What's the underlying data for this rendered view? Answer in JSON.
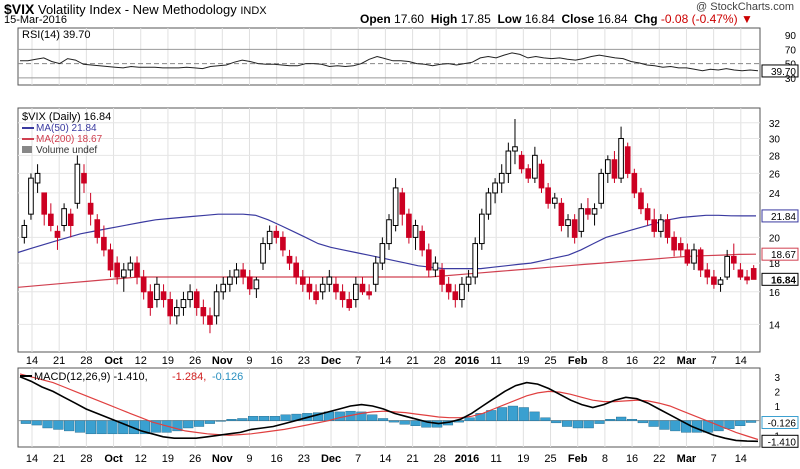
{
  "header": {
    "symbol": "$VIX",
    "name": "Volatility Index - New Methodology",
    "exchange": "INDX",
    "date": "15-Mar-2016",
    "copyright": "@ StockCharts.com",
    "open_label": "Open",
    "open": "17.60",
    "high_label": "High",
    "high": "17.85",
    "low_label": "Low",
    "low": "16.84",
    "close_label": "Close",
    "close": "16.84",
    "chg_label": "Chg",
    "chg": "-0.08 (-0.47%)"
  },
  "colors": {
    "up": "#000000",
    "down": "#cc0022",
    "ma50": "#3a3aa0",
    "ma200": "#d04050",
    "macd": "#000000",
    "signal": "#e04040",
    "hist": "#3aa0d0",
    "rsi": "#222222"
  },
  "chart_data": [
    {
      "type": "line",
      "title": "RSI(14) 39.70",
      "legend_label": "RSI(14)",
      "legend_value": "39.70",
      "y_ticks": [
        90,
        70,
        50,
        39.7,
        30
      ],
      "y_labels": [
        "90",
        "70",
        "50",
        "39.70",
        "30"
      ],
      "ylim": [
        20,
        100
      ],
      "series": [
        {
          "name": "RSI(14)",
          "values": [
            54,
            54,
            56,
            58,
            53,
            50,
            57,
            55,
            49,
            48,
            47,
            46,
            45,
            44,
            46,
            45,
            45,
            45,
            44,
            44,
            44,
            45,
            44,
            43,
            46,
            47,
            48,
            52,
            55,
            53,
            50,
            49,
            49,
            48,
            47,
            47,
            50,
            50,
            49,
            46,
            47,
            46,
            47,
            50,
            56,
            60,
            57,
            54,
            54,
            53,
            50,
            49,
            47,
            49,
            50,
            48,
            50,
            52,
            58,
            60,
            58,
            62,
            65,
            63,
            58,
            60,
            58,
            57,
            58,
            56,
            55,
            57,
            60,
            62,
            60,
            58,
            57,
            53,
            51,
            48,
            47,
            45,
            46,
            44,
            44,
            42,
            40,
            42,
            41,
            43,
            41,
            40,
            41,
            40
          ]
        }
      ]
    },
    {
      "type": "candlestick",
      "title": "$VIX (Daily) 16.84",
      "legend": [
        "$VIX (Daily) 16.84",
        "MA(50) 21.84",
        "MA(200) 18.67",
        "Volume undef"
      ],
      "y_ticks": [
        32,
        30,
        28,
        26,
        24,
        20,
        18,
        16,
        14
      ],
      "y_labels": [
        "32",
        "30",
        "28",
        "26",
        "24",
        "20",
        "18",
        "16",
        "14"
      ],
      "last_value_labels": [
        "21.84",
        "18.67",
        "16.84"
      ],
      "ylim": [
        12.5,
        34
      ],
      "log_scale": true,
      "candles": [
        [
          20.0,
          21.5,
          19.5,
          21.0
        ],
        [
          22.0,
          26.0,
          21.5,
          25.5
        ],
        [
          25.0,
          27.0,
          24.0,
          26.0
        ],
        [
          24.0,
          24.0,
          21.0,
          22.0
        ],
        [
          22.0,
          23.0,
          20.5,
          21.0
        ],
        [
          20.5,
          21.0,
          19.0,
          20.0
        ],
        [
          21.0,
          23.0,
          20.5,
          22.5
        ],
        [
          22.0,
          22.5,
          20.0,
          21.0
        ],
        [
          23.0,
          28.0,
          22.5,
          27.0
        ],
        [
          26.0,
          27.0,
          24.0,
          25.0
        ],
        [
          23.0,
          24.0,
          21.0,
          22.0
        ],
        [
          21.5,
          22.0,
          19.5,
          20.0
        ],
        [
          20.0,
          21.0,
          18.5,
          19.0
        ],
        [
          19.0,
          19.5,
          17.0,
          17.5
        ],
        [
          18.0,
          18.5,
          16.5,
          17.0
        ],
        [
          17.0,
          18.0,
          16.0,
          17.5
        ],
        [
          17.5,
          18.5,
          17.0,
          18.0
        ],
        [
          18.0,
          18.5,
          16.5,
          17.0
        ],
        [
          17.0,
          17.5,
          15.5,
          16.0
        ],
        [
          16.0,
          16.5,
          14.5,
          15.0
        ],
        [
          15.5,
          17.0,
          15.0,
          16.5
        ],
        [
          16.0,
          16.5,
          15.0,
          15.5
        ],
        [
          15.5,
          16.0,
          14.0,
          14.5
        ],
        [
          14.5,
          15.5,
          14.0,
          15.0
        ],
        [
          15.0,
          16.0,
          14.5,
          15.5
        ],
        [
          15.5,
          16.5,
          15.0,
          16.0
        ],
        [
          16.0,
          16.2,
          14.5,
          15.0
        ],
        [
          15.0,
          15.5,
          14.0,
          14.5
        ],
        [
          14.5,
          15.0,
          13.5,
          14.0
        ],
        [
          14.5,
          16.5,
          14.0,
          16.0
        ],
        [
          16.0,
          17.0,
          15.5,
          16.5
        ],
        [
          16.5,
          17.5,
          16.0,
          17.0
        ],
        [
          17.0,
          18.0,
          16.5,
          17.5
        ],
        [
          17.5,
          18.0,
          16.5,
          17.0
        ],
        [
          17.0,
          17.5,
          15.8,
          16.2
        ],
        [
          16.2,
          17.0,
          15.6,
          16.8
        ],
        [
          18.0,
          20.0,
          17.5,
          19.5
        ],
        [
          19.5,
          21.0,
          19.0,
          20.5
        ],
        [
          20.5,
          21.0,
          19.5,
          20.0
        ],
        [
          20.0,
          20.5,
          18.5,
          19.0
        ],
        [
          18.5,
          19.0,
          17.5,
          18.0
        ],
        [
          18.0,
          18.5,
          16.5,
          17.0
        ],
        [
          17.0,
          17.5,
          16.0,
          16.5
        ],
        [
          16.5,
          17.0,
          15.5,
          16.0
        ],
        [
          16.0,
          16.5,
          15.2,
          15.5
        ],
        [
          16.0,
          17.0,
          15.5,
          16.5
        ],
        [
          16.5,
          17.5,
          16.0,
          17.0
        ],
        [
          16.5,
          17.0,
          15.5,
          16.0
        ],
        [
          16.0,
          16.5,
          15.0,
          15.5
        ],
        [
          15.5,
          16.0,
          14.8,
          15.0
        ],
        [
          15.5,
          17.0,
          15.0,
          16.5
        ],
        [
          16.5,
          17.0,
          15.8,
          16.0
        ],
        [
          16.0,
          16.5,
          15.5,
          15.8
        ],
        [
          16.5,
          18.5,
          16.0,
          18.0
        ],
        [
          18.0,
          20.0,
          17.5,
          19.5
        ],
        [
          19.5,
          22.0,
          19.0,
          21.5
        ],
        [
          21.0,
          25.5,
          20.5,
          24.5
        ],
        [
          24.0,
          24.5,
          21.0,
          22.0
        ],
        [
          22.0,
          22.5,
          19.5,
          20.0
        ],
        [
          20.0,
          21.5,
          19.0,
          21.0
        ],
        [
          20.5,
          21.0,
          18.5,
          19.0
        ],
        [
          19.0,
          19.5,
          17.0,
          17.5
        ],
        [
          17.5,
          18.5,
          17.0,
          18.0
        ],
        [
          17.5,
          18.0,
          16.0,
          16.5
        ],
        [
          16.5,
          17.0,
          15.5,
          16.0
        ],
        [
          16.0,
          16.5,
          15.0,
          15.5
        ],
        [
          15.5,
          17.0,
          15.0,
          16.5
        ],
        [
          16.5,
          17.5,
          16.0,
          17.0
        ],
        [
          17.0,
          20.0,
          16.5,
          19.5
        ],
        [
          19.5,
          22.5,
          19.0,
          22.0
        ],
        [
          22.0,
          24.5,
          21.5,
          24.0
        ],
        [
          24.0,
          25.5,
          23.0,
          25.0
        ],
        [
          25.0,
          27.0,
          24.0,
          26.0
        ],
        [
          26.0,
          29.5,
          25.0,
          28.5
        ],
        [
          28.5,
          32.5,
          27.0,
          29.0
        ],
        [
          28.0,
          28.5,
          26.0,
          26.5
        ],
        [
          26.5,
          27.0,
          25.0,
          25.5
        ],
        [
          25.5,
          29.0,
          25.0,
          28.0
        ],
        [
          27.0,
          27.5,
          24.0,
          24.5
        ],
        [
          24.5,
          25.0,
          22.5,
          23.0
        ],
        [
          23.0,
          24.0,
          22.5,
          23.5
        ],
        [
          23.0,
          23.5,
          20.5,
          21.0
        ],
        [
          21.0,
          22.0,
          20.0,
          21.5
        ],
        [
          21.5,
          22.0,
          19.5,
          20.0
        ],
        [
          20.5,
          23.0,
          20.0,
          22.5
        ],
        [
          22.5,
          23.5,
          21.5,
          22.0
        ],
        [
          22.0,
          23.0,
          21.0,
          22.5
        ],
        [
          23.0,
          26.5,
          22.5,
          26.0
        ],
        [
          26.0,
          28.0,
          25.0,
          27.5
        ],
        [
          27.5,
          28.5,
          25.0,
          25.5
        ],
        [
          25.5,
          31.5,
          25.0,
          30.0
        ],
        [
          29.0,
          29.5,
          25.5,
          26.0
        ],
        [
          26.0,
          26.5,
          23.5,
          24.0
        ],
        [
          24.0,
          24.5,
          22.0,
          22.5
        ],
        [
          22.5,
          23.0,
          21.0,
          21.5
        ],
        [
          21.5,
          22.5,
          20.0,
          20.5
        ],
        [
          20.5,
          22.0,
          20.0,
          21.5
        ],
        [
          21.5,
          22.0,
          19.5,
          20.0
        ],
        [
          20.0,
          20.5,
          18.5,
          19.0
        ],
        [
          19.5,
          20.0,
          18.5,
          19.0
        ],
        [
          19.0,
          19.5,
          17.8,
          18.0
        ],
        [
          18.0,
          19.5,
          17.5,
          19.0
        ],
        [
          19.0,
          19.2,
          17.0,
          17.5
        ],
        [
          17.5,
          18.0,
          16.5,
          17.0
        ],
        [
          17.0,
          17.5,
          16.2,
          16.5
        ],
        [
          16.5,
          17.0,
          16.0,
          16.8
        ],
        [
          17.0,
          19.0,
          16.8,
          18.5
        ],
        [
          18.5,
          19.5,
          17.5,
          18.0
        ],
        [
          17.5,
          18.0,
          16.8,
          17.0
        ],
        [
          17.0,
          17.5,
          16.5,
          16.8
        ],
        [
          17.6,
          17.85,
          16.84,
          16.84
        ]
      ],
      "series": [
        {
          "name": "MA(50)",
          "values": [
            18.8,
            19.1,
            19.4,
            19.7,
            20.0,
            20.3,
            20.5,
            20.7,
            20.9,
            21.1,
            21.3,
            21.5,
            21.6,
            21.7,
            21.8,
            21.9,
            22.0,
            22.0,
            22.0,
            21.9,
            21.5,
            21.0,
            20.5,
            20.0,
            19.5,
            19.2,
            19.0,
            18.8,
            18.6,
            18.4,
            18.2,
            18.0,
            17.8,
            17.7,
            17.6,
            17.6,
            17.6,
            17.6,
            17.7,
            17.8,
            17.9,
            18.0,
            18.2,
            18.4,
            18.6,
            19.0,
            19.5,
            20.0,
            20.3,
            20.6,
            20.9,
            21.2,
            21.5,
            21.7,
            21.8,
            21.9,
            21.9,
            21.85,
            21.84,
            21.84
          ]
        },
        {
          "name": "MA(200)",
          "values": [
            16.3,
            16.4,
            16.5,
            16.6,
            16.7,
            16.8,
            16.9,
            17.0,
            17.0,
            17.0,
            17.0,
            17.0,
            17.0,
            17.0,
            17.0,
            17.0,
            17.0,
            17.0,
            17.0,
            17.0,
            17.0,
            17.0,
            17.0,
            17.0,
            17.0,
            17.1,
            17.2,
            17.3,
            17.4,
            17.5,
            17.6,
            17.7,
            17.8,
            17.9,
            18.0,
            18.1,
            18.2,
            18.3,
            18.4,
            18.5,
            18.55,
            18.6,
            18.65,
            18.67
          ]
        }
      ]
    },
    {
      "type": "line",
      "title": "MACD(12,26,9) -1.410, -1.284, -0.126",
      "legend": [
        "MACD(12,26,9)",
        "-1.410",
        "-1.284",
        "-0.126"
      ],
      "y_ticks": [
        3,
        2,
        1,
        0,
        -1
      ],
      "y_labels": [
        "3",
        "2",
        "1",
        "0",
        "-1"
      ],
      "last_value_labels": [
        "-0.126",
        "-1.410"
      ],
      "ylim": [
        -1.8,
        3.6
      ],
      "series": [
        {
          "name": "MACD",
          "values": [
            3.0,
            2.7,
            2.3,
            2.0,
            1.6,
            1.2,
            0.8,
            0.5,
            0.2,
            -0.1,
            -0.4,
            -0.7,
            -0.9,
            -1.1,
            -1.2,
            -1.2,
            -1.2,
            -1.1,
            -1.0,
            -0.9,
            -0.8,
            -0.6,
            -0.5,
            -0.4,
            -0.2,
            0.0,
            0.2,
            0.4,
            0.6,
            0.8,
            1.0,
            1.1,
            1.0,
            0.8,
            0.5,
            0.3,
            0.1,
            -0.1,
            -0.2,
            -0.1,
            0.1,
            0.5,
            1.0,
            1.5,
            2.0,
            2.4,
            2.6,
            2.5,
            2.2,
            1.8,
            1.4,
            1.1,
            0.9,
            1.1,
            1.4,
            1.6,
            1.5,
            1.2,
            0.8,
            0.4,
            0.0,
            -0.4,
            -0.7,
            -1.0,
            -1.2,
            -1.35,
            -1.4,
            -1.41
          ]
        },
        {
          "name": "Signal",
          "values": [
            3.2,
            3.0,
            2.8,
            2.6,
            2.3,
            2.0,
            1.7,
            1.4,
            1.1,
            0.8,
            0.5,
            0.2,
            -0.1,
            -0.3,
            -0.5,
            -0.7,
            -0.8,
            -0.9,
            -0.95,
            -1.0,
            -0.95,
            -0.9,
            -0.8,
            -0.7,
            -0.6,
            -0.45,
            -0.3,
            -0.15,
            0.0,
            0.2,
            0.35,
            0.5,
            0.6,
            0.65,
            0.6,
            0.55,
            0.45,
            0.35,
            0.25,
            0.2,
            0.2,
            0.3,
            0.5,
            0.8,
            1.1,
            1.4,
            1.7,
            1.9,
            2.0,
            1.95,
            1.8,
            1.6,
            1.4,
            1.3,
            1.3,
            1.35,
            1.4,
            1.35,
            1.2,
            1.0,
            0.7,
            0.4,
            0.1,
            -0.2,
            -0.5,
            -0.8,
            -1.05,
            -1.284
          ]
        },
        {
          "name": "Histogram",
          "values": [
            -0.2,
            -0.3,
            -0.5,
            -0.6,
            -0.7,
            -0.8,
            -0.9,
            -0.9,
            -0.9,
            -0.9,
            -0.9,
            -0.9,
            -0.8,
            -0.8,
            -0.7,
            -0.5,
            -0.4,
            -0.2,
            -0.05,
            0.1,
            0.15,
            0.3,
            0.3,
            0.3,
            0.4,
            0.45,
            0.5,
            0.55,
            0.6,
            0.6,
            0.65,
            0.6,
            0.4,
            0.15,
            -0.1,
            -0.25,
            -0.35,
            -0.45,
            -0.45,
            -0.3,
            -0.1,
            0.2,
            0.5,
            0.7,
            0.9,
            1.0,
            0.9,
            0.6,
            0.2,
            -0.15,
            -0.4,
            -0.5,
            -0.5,
            -0.2,
            0.1,
            0.25,
            0.1,
            -0.15,
            -0.4,
            -0.6,
            -0.7,
            -0.8,
            -0.8,
            -0.8,
            -0.7,
            -0.55,
            -0.35,
            -0.126
          ]
        }
      ]
    }
  ],
  "x_axis": {
    "labels": [
      "14",
      "21",
      "28",
      "Oct",
      "12",
      "19",
      "26",
      "Nov",
      "9",
      "16",
      "23",
      "Dec",
      "7",
      "14",
      "21",
      "28",
      "2016",
      "11",
      "19",
      "25",
      "Feb",
      "8",
      "16",
      "22",
      "Mar",
      "7",
      "14"
    ],
    "bold": [
      false,
      false,
      false,
      true,
      false,
      false,
      false,
      true,
      false,
      false,
      false,
      true,
      false,
      false,
      false,
      false,
      true,
      false,
      false,
      false,
      true,
      false,
      false,
      false,
      true,
      false,
      false
    ]
  }
}
